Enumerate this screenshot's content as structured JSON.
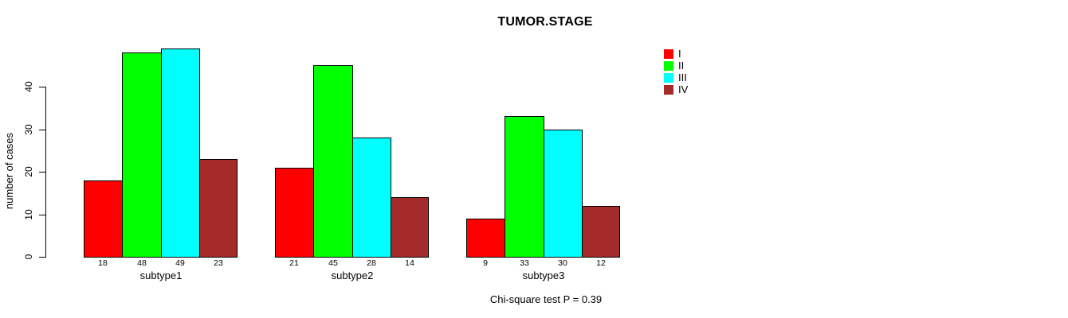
{
  "title": "TUMOR.STAGE",
  "note": "Chi-square test P = 0.39",
  "chart_data": {
    "type": "bar",
    "title": "TUMOR.STAGE",
    "xlabel": "",
    "ylabel": "number of cases",
    "ylim": [
      0,
      40
    ],
    "yticks": [
      0,
      10,
      20,
      30,
      40
    ],
    "grid": false,
    "legend_position": "top-right",
    "bar_value_labels_shown": true,
    "categories": [
      "subtype1",
      "subtype2",
      "subtype3"
    ],
    "series": [
      {
        "name": "I",
        "color": "#FF0000",
        "values": [
          18,
          21,
          9
        ]
      },
      {
        "name": "II",
        "color": "#00FF00",
        "values": [
          48,
          45,
          33
        ]
      },
      {
        "name": "III",
        "color": "#00FFFF",
        "values": [
          49,
          28,
          30
        ]
      },
      {
        "name": "IV",
        "color": "#A52A2A",
        "values": [
          23,
          14,
          12
        ]
      }
    ],
    "annotation": "Chi-square test P = 0.39"
  }
}
